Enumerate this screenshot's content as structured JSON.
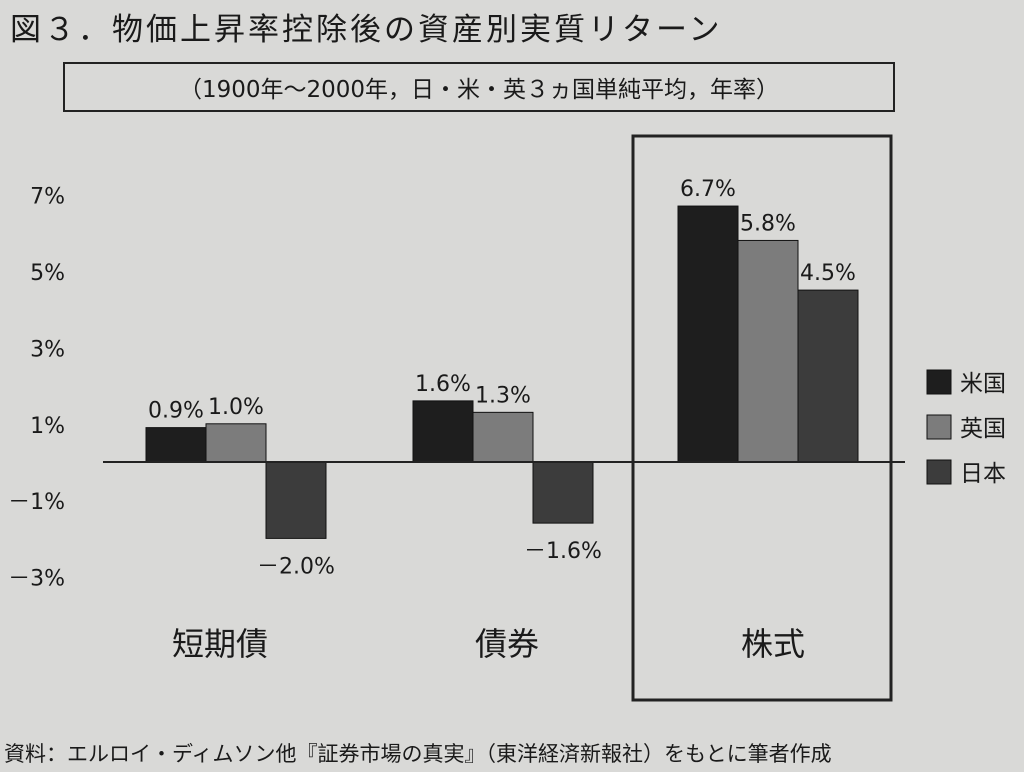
{
  "figure": {
    "title": "図３．物価上昇率控除後の資産別実質リターン",
    "subtitle": "（1900年～2000年，日・米・英３ヵ国単純平均，年率）",
    "source": "資料：エルロイ・ディムソン他『証券市場の真実』（東洋経済新報社）をもとに筆者作成"
  },
  "colors": {
    "米国": "#1e1e1e",
    "英国": "#7c7c7c",
    "日本": "#3c3c3c",
    "axis": "#222222"
  },
  "chart_data": {
    "type": "bar",
    "categories": [
      "短期債",
      "債券",
      "株式"
    ],
    "series": [
      {
        "name": "米国",
        "values": [
          0.9,
          1.6,
          6.7
        ],
        "labels": [
          "0.9%",
          "1.6%",
          "6.7%"
        ]
      },
      {
        "name": "英国",
        "values": [
          1.0,
          1.3,
          5.8
        ],
        "labels": [
          "1.0%",
          "1.3%",
          "5.8%"
        ]
      },
      {
        "name": "日本",
        "values": [
          -2.0,
          -1.6,
          4.5
        ],
        "labels": [
          "－2.0%",
          "－1.6%",
          "4.5%"
        ]
      }
    ],
    "yticks": [
      7,
      5,
      3,
      1,
      -1,
      -3
    ],
    "ytick_labels": [
      "7%",
      "5%",
      "3%",
      "1%",
      "－1%",
      "－3%"
    ],
    "ylim": [
      -3,
      7
    ],
    "legend_position": "right",
    "highlighted_category": "株式",
    "grid": false
  }
}
